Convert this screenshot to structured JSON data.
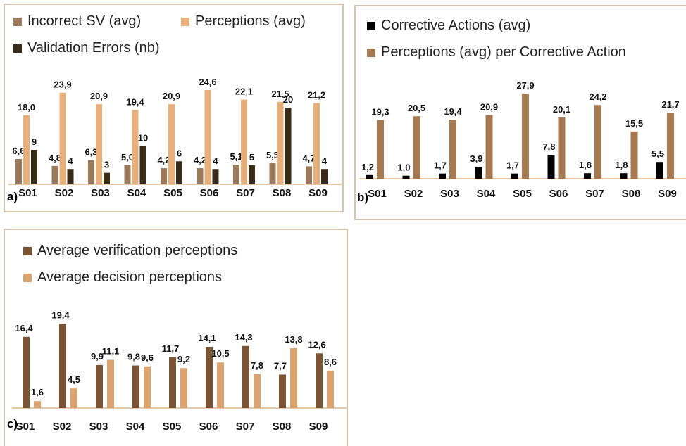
{
  "chart_data": [
    {
      "panel_label": "a)",
      "type": "bar",
      "categories": [
        "S01",
        "S02",
        "S03",
        "S04",
        "S05",
        "S06",
        "S07",
        "S08",
        "S09"
      ],
      "series": [
        {
          "name": "Incorrect SV (avg)",
          "values": [
            6.6,
            4.8,
            6.3,
            5.0,
            4.2,
            4.2,
            5.1,
            5.5,
            4.7
          ],
          "labels": [
            "6,6",
            "4,8",
            "6,3",
            "5,0",
            "4,2",
            "4,2",
            "5,1",
            "5,5",
            "4,7"
          ],
          "color": "#9b7a5c"
        },
        {
          "name": "Perceptions (avg)",
          "values": [
            18.0,
            23.9,
            20.9,
            19.4,
            20.9,
            24.6,
            22.1,
            21.5,
            21.2
          ],
          "labels": [
            "18,0",
            "23,9",
            "20,9",
            "19,4",
            "20,9",
            "24,6",
            "22,1",
            "21,5",
            "21,2"
          ],
          "color": "#e7b07a"
        },
        {
          "name": "Validation Errors (nb)",
          "values": [
            9,
            4,
            3,
            10,
            6,
            4,
            5,
            20,
            4
          ],
          "labels": [
            "9",
            "4",
            "3",
            "10",
            "6",
            "4",
            "5",
            "20",
            "4"
          ],
          "color": "#3a2a18"
        }
      ],
      "legend_position": "top",
      "grid": false
    },
    {
      "panel_label": "b)",
      "type": "bar",
      "categories": [
        "S01",
        "S02",
        "S03",
        "S04",
        "S05",
        "S06",
        "S07",
        "S08",
        "S09"
      ],
      "series": [
        {
          "name": "Corrective Actions (avg)",
          "values": [
            1.2,
            1.0,
            1.7,
            3.9,
            1.7,
            7.8,
            1.8,
            1.8,
            5.5
          ],
          "labels": [
            "1,2",
            "1,0",
            "1,7",
            "3,9",
            "1,7",
            "7,8",
            "1,8",
            "1,8",
            "5,5"
          ],
          "color": "#000000"
        },
        {
          "name": "Perceptions (avg) per Corrective Action",
          "values": [
            19.3,
            20.5,
            19.4,
            20.9,
            27.9,
            20.1,
            24.2,
            15.5,
            21.7
          ],
          "labels": [
            "19,3",
            "20,5",
            "19,4",
            "20,9",
            "27,9",
            "20,1",
            "24,2",
            "15,5",
            "21,7"
          ],
          "color": "#a57a52"
        }
      ],
      "legend_position": "top",
      "grid": false
    },
    {
      "panel_label": "c)",
      "type": "bar",
      "categories": [
        "S01",
        "S02",
        "S03",
        "S04",
        "S05",
        "S06",
        "S07",
        "S08",
        "S09"
      ],
      "series": [
        {
          "name": "Average verification perceptions",
          "values": [
            16.4,
            19.4,
            9.9,
            9.8,
            11.7,
            14.1,
            14.3,
            7.7,
            12.6
          ],
          "labels": [
            "16,4",
            "19,4",
            "9,9",
            "9,8",
            "11,7",
            "14,1",
            "14,3",
            "7,7",
            "12,6"
          ],
          "color": "#7b5434"
        },
        {
          "name": "Average decision perceptions",
          "values": [
            1.6,
            4.5,
            11.1,
            9.6,
            9.2,
            10.5,
            7.8,
            13.8,
            8.6
          ],
          "labels": [
            "1,6",
            "4,5",
            "11,1",
            "9,6",
            "9,2",
            "10,5",
            "7,8",
            "13,8",
            "8,6"
          ],
          "color": "#d9a470"
        }
      ],
      "legend_position": "top",
      "grid": false
    }
  ]
}
